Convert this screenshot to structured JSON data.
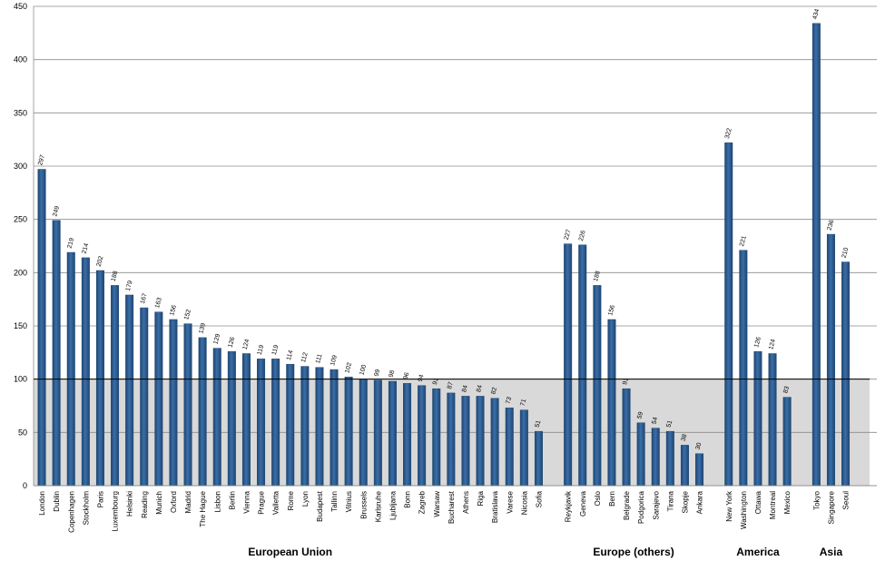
{
  "chart_data": {
    "type": "bar",
    "title": "",
    "xlabel": "",
    "ylabel": "",
    "ylim": [
      0,
      450
    ],
    "y_ticks": [
      0,
      50,
      100,
      150,
      200,
      250,
      300,
      350,
      400,
      450
    ],
    "grid": true,
    "reference_line": 100,
    "shaded_band": [
      0,
      100
    ],
    "colors": {
      "bar": "#3a6ea8",
      "bar_dark": "#1f4672",
      "shade": "#d9d9d9",
      "grid": "#8c8c8c"
    },
    "groups": [
      {
        "name": "European Union",
        "categories": [
          "London",
          "Dublin",
          "Copenhagen",
          "Stockholm",
          "Paris",
          "Luxembourg",
          "Helsinki",
          "Reading",
          "Munich",
          "Oxford",
          "Madrid",
          "The Hague",
          "Lisbon",
          "Berlin",
          "Vienna",
          "Prague",
          "Valletta",
          "Rome",
          "Lyon",
          "Budapest",
          "Tallinn",
          "Vilnius",
          "Brussels",
          "Karlsruhe",
          "Ljubljana",
          "Bonn",
          "Zagreb",
          "Warsaw",
          "Bucharest",
          "Athens",
          "Riga",
          "Bratislava",
          "Varese",
          "Nicosia",
          "Sofia"
        ],
        "values": [
          297,
          249,
          219,
          214,
          202,
          188,
          179,
          167,
          163,
          156,
          152,
          139,
          129,
          126,
          124,
          119,
          119,
          114,
          112,
          111,
          109,
          102,
          100,
          99,
          98,
          96,
          94,
          91,
          87,
          84,
          84,
          82,
          73,
          71,
          51
        ]
      },
      {
        "name": "Europe (others)",
        "categories": [
          "Reykjavik",
          "Geneva",
          "Oslo",
          "Bern",
          "Belgrade",
          "Podgorica",
          "Sarajevo",
          "Tirana",
          "Skopje",
          "Ankara"
        ],
        "values": [
          227,
          226,
          188,
          156,
          91,
          59,
          54,
          51,
          38,
          30
        ]
      },
      {
        "name": "America",
        "categories": [
          "New York",
          "Washington",
          "Ottawa",
          "Montreal",
          "Mexico"
        ],
        "values": [
          322,
          221,
          126,
          124,
          83
        ]
      },
      {
        "name": "Asia",
        "categories": [
          "Tokyo",
          "Singapore",
          "Seoul"
        ],
        "values": [
          434,
          236,
          210
        ]
      }
    ]
  }
}
